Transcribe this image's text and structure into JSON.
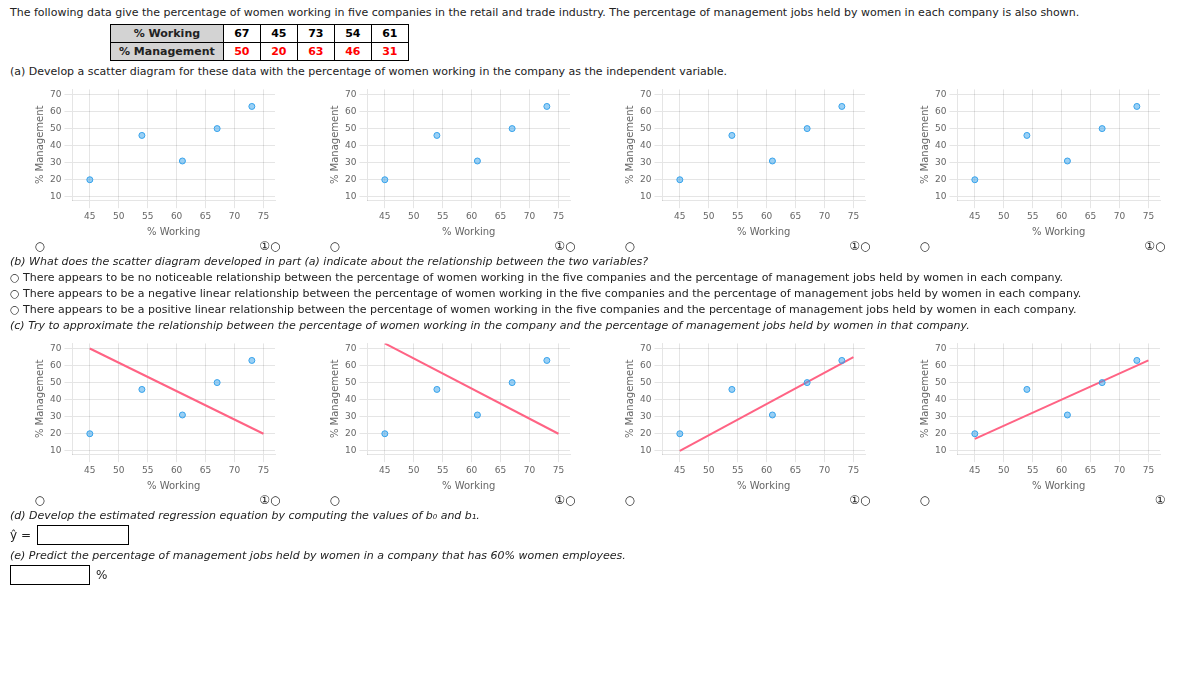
{
  "title": "The following data give the percentage of women working in five companies in the retail and trade industry. The percentage of management jobs held by women in each company is also shown.",
  "table": [
    {
      "name": "% Working",
      "values": [
        67,
        45,
        73,
        54,
        61
      ],
      "color": "black"
    },
    {
      "name": "% Management",
      "values": [
        50,
        20,
        63,
        46,
        31
      ],
      "color": "red"
    }
  ],
  "annotations": {
    "part_a": "(a)  Develop a scatter diagram for these data with the percentage of women working in the company as the independent variable.",
    "part_b": "(b)  What does the scatter diagram developed in part (a) indicate about the relationship between the two variables?",
    "part_b_options": [
      "○  There appears to be no noticeable relationship between the percentage of women working in the five companies and the percentage of management jobs held by women in each company.",
      "○  There appears to be a negative linear relationship between the percentage of women working in the five companies and the percentage of management jobs held by women in each company.",
      "○  There appears to be a positive linear relationship between the percentage of women working in the five companies and the percentage of management jobs held by women in each company."
    ],
    "part_c": "(c)  Try to approximate the relationship between the percentage of women working in the company and the percentage of management jobs held by women in that company.",
    "part_d": "(d)  Develop the estimated regression equation by computing the values of b₀ and b₁.",
    "part_d_prefix": "ŷ =",
    "part_e": "(e)  Predict the percentage of management jobs held by women in a company that has 60% women employees.",
    "part_e_suffix": "%"
  },
  "chart_data": [
    {
      "type": "scatter",
      "xlabel": "% Working",
      "ylabel": "% Management",
      "xlim": [
        42,
        77
      ],
      "ylim": [
        8,
        73
      ],
      "xticks": [
        45,
        50,
        55,
        60,
        65,
        70,
        75
      ],
      "yticks": [
        10,
        20,
        30,
        40,
        50,
        60,
        70
      ],
      "grid": true,
      "annotations": [
        "○",
        "①○"
      ],
      "series": [
        {
          "type": "scatter",
          "x": [
            67,
            45,
            73,
            54,
            61
          ],
          "values": [
            50,
            20,
            63,
            46,
            31
          ]
        }
      ]
    },
    {
      "type": "scatter",
      "xlabel": "% Working",
      "ylabel": "% Management",
      "xlim": [
        42,
        77
      ],
      "ylim": [
        8,
        73
      ],
      "xticks": [
        45,
        50,
        55,
        60,
        65,
        70,
        75
      ],
      "yticks": [
        10,
        20,
        30,
        40,
        50,
        60,
        70
      ],
      "grid": true,
      "annotations": [
        "○",
        "①○"
      ],
      "series": [
        {
          "type": "scatter",
          "x": [
            67,
            45,
            73,
            54,
            61
          ],
          "values": [
            50,
            20,
            63,
            46,
            31
          ]
        }
      ]
    },
    {
      "type": "scatter",
      "xlabel": "% Working",
      "ylabel": "% Management",
      "xlim": [
        42,
        77
      ],
      "ylim": [
        8,
        73
      ],
      "xticks": [
        45,
        50,
        55,
        60,
        65,
        70,
        75
      ],
      "yticks": [
        10,
        20,
        30,
        40,
        50,
        60,
        70
      ],
      "grid": true,
      "annotations": [
        "○",
        "①○"
      ],
      "series": [
        {
          "type": "scatter",
          "x": [
            67,
            45,
            73,
            54,
            61
          ],
          "values": [
            50,
            20,
            63,
            46,
            31
          ]
        }
      ]
    },
    {
      "type": "scatter",
      "xlabel": "% Working",
      "ylabel": "% Management",
      "xlim": [
        42,
        77
      ],
      "ylim": [
        8,
        73
      ],
      "xticks": [
        45,
        50,
        55,
        60,
        65,
        70,
        75
      ],
      "yticks": [
        10,
        20,
        30,
        40,
        50,
        60,
        70
      ],
      "grid": true,
      "annotations": [
        "○",
        "①○"
      ],
      "series": [
        {
          "type": "scatter",
          "x": [
            67,
            45,
            73,
            54,
            61
          ],
          "values": [
            50,
            20,
            63,
            46,
            31
          ]
        }
      ]
    },
    {
      "type": "scatter",
      "xlabel": "% Working",
      "ylabel": "% Management",
      "xlim": [
        42,
        77
      ],
      "ylim": [
        8,
        73
      ],
      "xticks": [
        45,
        50,
        55,
        60,
        65,
        70,
        75
      ],
      "yticks": [
        10,
        20,
        30,
        40,
        50,
        60,
        70
      ],
      "grid": true,
      "annotations": [
        "○",
        "①○"
      ],
      "series": [
        {
          "type": "scatter",
          "x": [
            67,
            45,
            73,
            54,
            61
          ],
          "values": [
            50,
            20,
            63,
            46,
            31
          ]
        },
        {
          "type": "line",
          "x": [
            45,
            75
          ],
          "values": [
            70,
            20
          ]
        }
      ]
    },
    {
      "type": "scatter",
      "xlabel": "% Working",
      "ylabel": "% Management",
      "xlim": [
        42,
        77
      ],
      "ylim": [
        8,
        73
      ],
      "xticks": [
        45,
        50,
        55,
        60,
        65,
        70,
        75
      ],
      "yticks": [
        10,
        20,
        30,
        40,
        50,
        60,
        70
      ],
      "grid": true,
      "annotations": [
        "○",
        "①○"
      ],
      "series": [
        {
          "type": "scatter",
          "x": [
            67,
            45,
            73,
            54,
            61
          ],
          "values": [
            50,
            20,
            63,
            46,
            31
          ]
        },
        {
          "type": "line",
          "x": [
            45,
            75
          ],
          "values": [
            73,
            20
          ]
        }
      ]
    },
    {
      "type": "scatter",
      "xlabel": "% Working",
      "ylabel": "% Management",
      "xlim": [
        42,
        77
      ],
      "ylim": [
        8,
        73
      ],
      "xticks": [
        45,
        50,
        55,
        60,
        65,
        70,
        75
      ],
      "yticks": [
        10,
        20,
        30,
        40,
        50,
        60,
        70
      ],
      "grid": true,
      "annotations": [
        "○",
        "①○"
      ],
      "series": [
        {
          "type": "scatter",
          "x": [
            67,
            45,
            73,
            54,
            61
          ],
          "values": [
            50,
            20,
            63,
            46,
            31
          ]
        },
        {
          "type": "line",
          "x": [
            45,
            75
          ],
          "values": [
            10,
            65
          ]
        }
      ]
    },
    {
      "type": "scatter",
      "xlabel": "% Working",
      "ylabel": "% Management",
      "xlim": [
        42,
        77
      ],
      "ylim": [
        8,
        73
      ],
      "xticks": [
        45,
        50,
        55,
        60,
        65,
        70,
        75
      ],
      "yticks": [
        10,
        20,
        30,
        40,
        50,
        60,
        70
      ],
      "grid": true,
      "annotations": [
        "○",
        "①"
      ],
      "series": [
        {
          "type": "scatter",
          "x": [
            67,
            45,
            73,
            54,
            61
          ],
          "values": [
            50,
            20,
            63,
            46,
            31
          ]
        },
        {
          "type": "line",
          "x": [
            45,
            75
          ],
          "values": [
            17,
            63
          ]
        }
      ]
    }
  ]
}
